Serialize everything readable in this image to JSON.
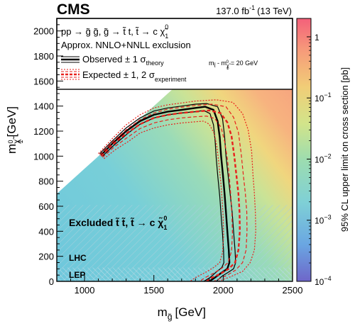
{
  "header": {
    "experiment": "CMS",
    "luminosity": "137.0 fb",
    "lumi_exponent": "-1",
    "energy": "(13 TeV)"
  },
  "legend": {
    "process_line": "pp → g̃ g̃, g̃ → t̃ t, t̃ → c χ̃",
    "process_sup": "0",
    "process_sub": "1",
    "approx": "Approx. NNLO+NNLL exclusion",
    "observed": "Observed ± 1 σ",
    "observed_sub": "theory",
    "expected": "Expected ± 1, 2 σ",
    "expected_sub": "experiment",
    "mass_diff_lhs": "m",
    "mass_diff_lhs_sub": "t̃",
    "mass_diff_mid": " - m",
    "mass_diff_mid_sub": "χ̃",
    "mass_diff_mid_sub2": "1",
    "mass_diff_mid_sup": "0",
    "mass_diff_rhs": " = 20 GeV"
  },
  "region_labels": {
    "excluded": "Excluded t̃ t̃, t̃ → c χ̃",
    "excluded_sup": "0",
    "excluded_sub": "1",
    "lhc": "LHC",
    "lep": "LEP"
  },
  "colors": {
    "observed": "#000000",
    "expected": "#e8201c",
    "hatch_lhc": "#9dc9d8",
    "hatch_lep": "#b0d6e2"
  },
  "chart_data": {
    "type": "heatmap",
    "title": "",
    "xlabel": "m",
    "xlabel_sub": "g̃",
    "xlabel_unit": "[GeV]",
    "ylabel": "m",
    "ylabel_sub": "χ̃",
    "ylabel_sub2": "1",
    "ylabel_sup": "0",
    "ylabel_unit": "[GeV]",
    "zlabel": "95% CL upper limit on cross section [pb]",
    "xlim": [
      800,
      2500
    ],
    "ylim": [
      0,
      2100
    ],
    "zlim": [
      0.0001,
      2
    ],
    "zscale": "log",
    "x_ticks": [
      1000,
      1500,
      2000,
      2500
    ],
    "y_ticks": [
      0,
      200,
      400,
      600,
      800,
      1000,
      1200,
      1400,
      1600,
      1800,
      2000
    ],
    "z_ticks": [
      {
        "value": 1,
        "label": "1",
        "exp": ""
      },
      {
        "value": 0.1,
        "label": "10",
        "exp": "−1"
      },
      {
        "value": 0.01,
        "label": "10",
        "exp": "−2"
      },
      {
        "value": 0.001,
        "label": "10",
        "exp": "−3"
      },
      {
        "value": 0.0001,
        "label": "10",
        "exp": "−4"
      }
    ],
    "colormap": [
      "#6e66c9",
      "#6aa6e2",
      "#7fd0d6",
      "#9cdcb0",
      "#d2e48a",
      "#f1cd77",
      "#f69a7a",
      "#f4607a"
    ],
    "excluded_regions": [
      {
        "name": "LHC",
        "ylim": [
          0,
          610
        ]
      },
      {
        "name": "LEP",
        "ylim": [
          0,
          110
        ]
      }
    ],
    "series": [
      {
        "name": "Observed",
        "style": "solid",
        "width": 2.4,
        "points": [
          [
            1120,
            1010
          ],
          [
            1200,
            1100
          ],
          [
            1300,
            1200
          ],
          [
            1400,
            1280
          ],
          [
            1500,
            1330
          ],
          [
            1600,
            1355
          ],
          [
            1700,
            1370
          ],
          [
            1800,
            1385
          ],
          [
            1870,
            1395
          ],
          [
            1930,
            1370
          ],
          [
            1960,
            1280
          ],
          [
            1975,
            1150
          ],
          [
            1985,
            1000
          ],
          [
            1998,
            850
          ],
          [
            2010,
            700
          ],
          [
            2020,
            550
          ],
          [
            2030,
            400
          ],
          [
            2040,
            250
          ],
          [
            2045,
            150
          ],
          [
            2030,
            100
          ],
          [
            1990,
            70
          ],
          [
            1940,
            30
          ],
          [
            1900,
            0
          ]
        ]
      },
      {
        "name": "Observed +1 σtheory",
        "style": "solid",
        "width": 1.2,
        "points": [
          [
            1110,
            1020
          ],
          [
            1200,
            1120
          ],
          [
            1300,
            1225
          ],
          [
            1400,
            1305
          ],
          [
            1500,
            1360
          ],
          [
            1600,
            1385
          ],
          [
            1700,
            1400
          ],
          [
            1800,
            1415
          ],
          [
            1880,
            1420
          ],
          [
            1960,
            1395
          ],
          [
            1995,
            1300
          ],
          [
            2010,
            1160
          ],
          [
            2020,
            1000
          ],
          [
            2035,
            850
          ],
          [
            2050,
            700
          ],
          [
            2065,
            550
          ],
          [
            2075,
            400
          ],
          [
            2085,
            250
          ],
          [
            2090,
            150
          ],
          [
            2075,
            100
          ],
          [
            2040,
            75
          ],
          [
            1990,
            40
          ],
          [
            1950,
            0
          ]
        ]
      },
      {
        "name": "Observed −1 σtheory",
        "style": "solid",
        "width": 1.2,
        "points": [
          [
            1130,
            1000
          ],
          [
            1210,
            1085
          ],
          [
            1310,
            1180
          ],
          [
            1400,
            1255
          ],
          [
            1500,
            1305
          ],
          [
            1600,
            1330
          ],
          [
            1700,
            1345
          ],
          [
            1800,
            1355
          ],
          [
            1860,
            1365
          ],
          [
            1905,
            1340
          ],
          [
            1930,
            1250
          ],
          [
            1942,
            1120
          ],
          [
            1950,
            980
          ],
          [
            1962,
            830
          ],
          [
            1975,
            680
          ],
          [
            1985,
            530
          ],
          [
            1995,
            380
          ],
          [
            2003,
            240
          ],
          [
            2005,
            150
          ],
          [
            1990,
            110
          ],
          [
            1950,
            75
          ],
          [
            1905,
            30
          ],
          [
            1860,
            0
          ]
        ]
      },
      {
        "name": "Expected",
        "style": "dashed",
        "width": 2.4,
        "points": [
          [
            1120,
            1000
          ],
          [
            1200,
            1090
          ],
          [
            1300,
            1180
          ],
          [
            1400,
            1255
          ],
          [
            1500,
            1305
          ],
          [
            1600,
            1330
          ],
          [
            1700,
            1345
          ],
          [
            1800,
            1355
          ],
          [
            1900,
            1365
          ],
          [
            1980,
            1345
          ],
          [
            2030,
            1270
          ],
          [
            2060,
            1160
          ],
          [
            2080,
            1000
          ],
          [
            2095,
            850
          ],
          [
            2110,
            700
          ],
          [
            2118,
            550
          ],
          [
            2120,
            400
          ],
          [
            2110,
            250
          ],
          [
            2085,
            150
          ],
          [
            2040,
            100
          ],
          [
            1980,
            60
          ],
          [
            1920,
            30
          ],
          [
            1880,
            0
          ]
        ]
      },
      {
        "name": "Expected +1 σexperiment",
        "style": "dashed",
        "width": 1.2,
        "points": [
          [
            1110,
            1010
          ],
          [
            1200,
            1110
          ],
          [
            1300,
            1210
          ],
          [
            1400,
            1290
          ],
          [
            1500,
            1345
          ],
          [
            1600,
            1375
          ],
          [
            1700,
            1390
          ],
          [
            1800,
            1405
          ],
          [
            1920,
            1415
          ],
          [
            2020,
            1395
          ],
          [
            2075,
            1310
          ],
          [
            2110,
            1190
          ],
          [
            2130,
            1020
          ],
          [
            2145,
            850
          ],
          [
            2160,
            700
          ],
          [
            2170,
            550
          ],
          [
            2172,
            400
          ],
          [
            2165,
            250
          ],
          [
            2140,
            150
          ],
          [
            2090,
            90
          ],
          [
            2030,
            50
          ],
          [
            1970,
            20
          ],
          [
            1930,
            0
          ]
        ]
      },
      {
        "name": "Expected −1 σexperiment",
        "style": "dashed",
        "width": 1.2,
        "points": [
          [
            1130,
            990
          ],
          [
            1210,
            1070
          ],
          [
            1310,
            1150
          ],
          [
            1400,
            1220
          ],
          [
            1500,
            1265
          ],
          [
            1600,
            1290
          ],
          [
            1700,
            1305
          ],
          [
            1800,
            1315
          ],
          [
            1880,
            1320
          ],
          [
            1940,
            1300
          ],
          [
            1985,
            1230
          ],
          [
            2010,
            1120
          ],
          [
            2030,
            980
          ],
          [
            2045,
            830
          ],
          [
            2055,
            680
          ],
          [
            2063,
            530
          ],
          [
            2067,
            380
          ],
          [
            2060,
            240
          ],
          [
            2035,
            150
          ],
          [
            1990,
            105
          ],
          [
            1930,
            65
          ],
          [
            1870,
            30
          ],
          [
            1830,
            0
          ]
        ]
      },
      {
        "name": "Expected +2 σexperiment",
        "style": "dotted",
        "width": 1.2,
        "points": [
          [
            1100,
            1020
          ],
          [
            1200,
            1140
          ],
          [
            1300,
            1250
          ],
          [
            1400,
            1330
          ],
          [
            1500,
            1385
          ],
          [
            1600,
            1410
          ],
          [
            1700,
            1425
          ],
          [
            1800,
            1440
          ],
          [
            1950,
            1450
          ],
          [
            2070,
            1430
          ],
          [
            2140,
            1340
          ],
          [
            2180,
            1210
          ],
          [
            2205,
            1040
          ],
          [
            2215,
            850
          ],
          [
            2225,
            700
          ],
          [
            2232,
            550
          ],
          [
            2235,
            400
          ],
          [
            2225,
            250
          ],
          [
            2195,
            150
          ],
          [
            2140,
            80
          ],
          [
            2060,
            40
          ],
          [
            1990,
            10
          ],
          [
            1960,
            0
          ]
        ]
      },
      {
        "name": "Expected −2 σexperiment",
        "style": "dotted",
        "width": 1.2,
        "points": [
          [
            1140,
            980
          ],
          [
            1220,
            1050
          ],
          [
            1320,
            1120
          ],
          [
            1400,
            1185
          ],
          [
            1500,
            1225
          ],
          [
            1600,
            1250
          ],
          [
            1700,
            1265
          ],
          [
            1800,
            1275
          ],
          [
            1860,
            1280
          ],
          [
            1900,
            1255
          ],
          [
            1935,
            1180
          ],
          [
            1955,
            1070
          ],
          [
            1970,
            930
          ],
          [
            1983,
            790
          ],
          [
            1993,
            640
          ],
          [
            2000,
            500
          ],
          [
            2003,
            360
          ],
          [
            1995,
            230
          ],
          [
            1975,
            150
          ],
          [
            1930,
            110
          ],
          [
            1870,
            70
          ],
          [
            1800,
            30
          ],
          [
            1760,
            0
          ]
        ]
      }
    ]
  }
}
